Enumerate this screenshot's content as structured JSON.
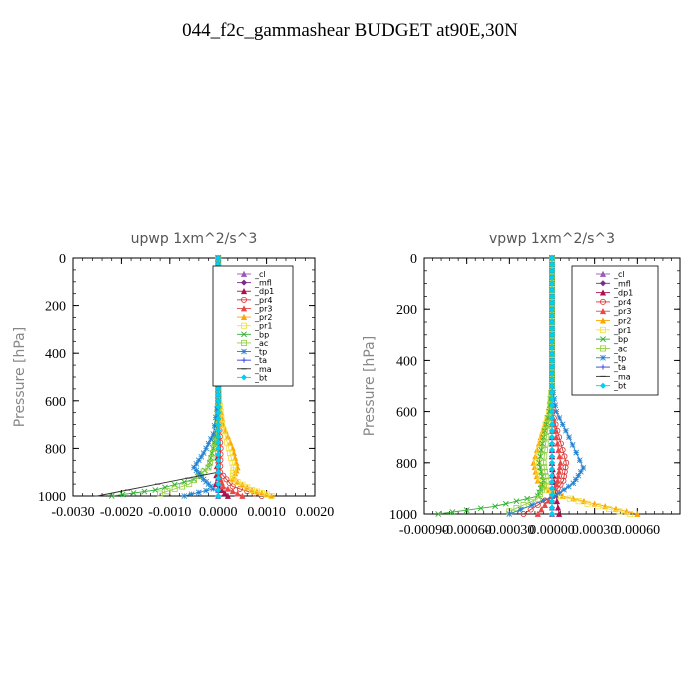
{
  "title": "044_f2c_gammashear  BUDGET at90E,30N",
  "colors": {
    "cl": "#9b59b6",
    "mfl": "#7b2d8b",
    "dp1": "#b0104d",
    "pr4": "#e03030",
    "pr3": "#e84848",
    "pr2": "#ffa500",
    "pr1": "#f0e040",
    "bp": "#30b030",
    "ac": "#90d040",
    "tp": "#2080d0",
    "ta": "#3040e0",
    "ma": "#303030",
    "bt": "#00d0f0"
  },
  "chart_data": [
    {
      "type": "line",
      "title": "upwp   1xm^2/s^3",
      "ylabel": "Pressure [hPa]",
      "xlim": [
        -0.003,
        0.002
      ],
      "ylim": [
        1000,
        0
      ],
      "xticks": [
        "-0.0030",
        "-0.0020",
        "-0.0010",
        "0.0000",
        "0.0010",
        "0.0020"
      ],
      "xtick_values": [
        -0.003,
        -0.002,
        -0.001,
        0.0,
        0.001,
        0.002
      ],
      "yticks": [
        "0",
        "200",
        "400",
        "600",
        "800",
        "1000"
      ],
      "ytick_values": [
        0,
        200,
        400,
        600,
        800,
        1000
      ],
      "legend": "top-right",
      "series": [
        {
          "name": "_cl",
          "color_key": "cl",
          "x": [
            0,
            0,
            0,
            0,
            0,
            0,
            0,
            0,
            0,
            0,
            0
          ],
          "y": [
            0,
            100,
            200,
            300,
            400,
            500,
            600,
            700,
            800,
            900,
            1000
          ]
        },
        {
          "name": "_mfl",
          "color_key": "mfl",
          "x": [
            0,
            0,
            0,
            0,
            0,
            0,
            0,
            0,
            0,
            0,
            0
          ],
          "y": [
            0,
            100,
            200,
            300,
            400,
            500,
            600,
            700,
            800,
            900,
            1000
          ]
        },
        {
          "name": "_dp1",
          "color_key": "dp1",
          "x": [
            0,
            0,
            0,
            0,
            0,
            0,
            0,
            0,
            0,
            -5e-05,
            0.0002
          ],
          "y": [
            0,
            100,
            200,
            300,
            400,
            500,
            600,
            700,
            800,
            950,
            1000
          ]
        },
        {
          "name": "_pr4",
          "color_key": "pr4",
          "x": [
            0,
            0,
            0,
            0,
            0,
            0,
            0,
            2e-05,
            5e-05,
            4e-05,
            0.0003,
            0.0009
          ],
          "y": [
            0,
            100,
            200,
            300,
            400,
            500,
            600,
            700,
            800,
            900,
            960,
            1000
          ]
        },
        {
          "name": "_pr3",
          "color_key": "pr3",
          "x": [
            0,
            0,
            0,
            0,
            0,
            0,
            0,
            0,
            0,
            0,
            0.0001,
            0.0005
          ],
          "y": [
            0,
            100,
            200,
            300,
            400,
            500,
            600,
            700,
            800,
            900,
            960,
            1000
          ]
        },
        {
          "name": "_pr2",
          "color_key": "pr2",
          "x": [
            0,
            0,
            0,
            0,
            0,
            0,
            3e-05,
            0.0001,
            0.0003,
            0.0004,
            0.0003,
            0.0007,
            0.0011
          ],
          "y": [
            0,
            100,
            200,
            300,
            400,
            500,
            600,
            700,
            800,
            880,
            930,
            975,
            1000
          ]
        },
        {
          "name": "_pr1",
          "color_key": "pr1",
          "x": [
            0,
            0,
            0,
            0,
            0,
            0,
            2e-05,
            8e-05,
            0.00022,
            0.00032,
            0.0003,
            0.0007,
            0.0011
          ],
          "y": [
            0,
            100,
            200,
            300,
            400,
            500,
            600,
            700,
            800,
            880,
            930,
            975,
            1000
          ]
        },
        {
          "name": "_bp",
          "color_key": "bp",
          "x": [
            0,
            0,
            0,
            0,
            0,
            0,
            0,
            -3e-05,
            -0.0001,
            -0.0002,
            -0.0005,
            -0.0013,
            -0.0022
          ],
          "y": [
            0,
            100,
            200,
            300,
            400,
            500,
            600,
            700,
            800,
            880,
            930,
            975,
            1000
          ]
        },
        {
          "name": "_ac",
          "color_key": "ac",
          "x": [
            0,
            0,
            0,
            0,
            0,
            0,
            0,
            -2e-05,
            -8e-05,
            -0.0002,
            -0.0006,
            -0.0012
          ],
          "y": [
            0,
            100,
            200,
            300,
            400,
            500,
            600,
            700,
            800,
            880,
            950,
            990
          ]
        },
        {
          "name": "_tp",
          "color_key": "tp",
          "x": [
            0,
            0,
            0,
            0,
            0,
            0,
            0,
            -0.0001,
            -0.0003,
            -0.0005,
            -0.0003,
            -0.0001,
            -0.0007
          ],
          "y": [
            0,
            100,
            200,
            300,
            400,
            500,
            600,
            740,
            820,
            880,
            930,
            970,
            1000
          ]
        },
        {
          "name": "_ta",
          "color_key": "ta",
          "x": [
            0,
            0,
            0,
            0,
            0,
            0,
            0,
            0,
            0,
            0,
            0
          ],
          "y": [
            0,
            100,
            200,
            300,
            400,
            500,
            600,
            700,
            800,
            900,
            1000
          ]
        },
        {
          "name": "_ma",
          "color_key": "ma",
          "x": [
            0,
            0,
            0,
            0,
            0,
            0,
            0,
            0,
            0,
            0,
            -0.0025
          ],
          "y": [
            0,
            100,
            200,
            300,
            400,
            500,
            600,
            700,
            800,
            900,
            1000
          ]
        },
        {
          "name": "_bt",
          "color_key": "bt",
          "x": [
            0,
            0,
            0,
            0,
            0,
            0,
            0,
            0,
            0,
            0,
            0
          ],
          "y": [
            0,
            100,
            200,
            300,
            400,
            500,
            600,
            700,
            800,
            900,
            1000
          ]
        }
      ]
    },
    {
      "type": "line",
      "title": "vpwp   1xm^2/s^3",
      "ylabel": "Pressure [hPa]",
      "xlim": [
        -0.0009,
        0.0009
      ],
      "ylim": [
        1000,
        0
      ],
      "xticks": [
        "-0.00090",
        "-0.00060",
        "-0.00030",
        "0.00000",
        "0.00030",
        "0.00060"
      ],
      "xtick_values": [
        -0.0009,
        -0.0006,
        -0.0003,
        0.0,
        0.0003,
        0.0006
      ],
      "yticks": [
        "0",
        "200",
        "400",
        "600",
        "800",
        "1000"
      ],
      "ytick_values": [
        0,
        200,
        400,
        600,
        800,
        1000
      ],
      "legend": "top-right",
      "series": [
        {
          "name": "_cl",
          "color_key": "cl",
          "x": [
            0,
            0,
            0,
            0,
            0,
            0,
            0,
            0,
            0,
            0,
            0
          ],
          "y": [
            0,
            100,
            200,
            300,
            400,
            500,
            600,
            700,
            800,
            900,
            1000
          ]
        },
        {
          "name": "_mfl",
          "color_key": "mfl",
          "x": [
            0,
            0,
            0,
            0,
            0,
            0,
            0,
            0,
            0,
            0,
            0
          ],
          "y": [
            0,
            100,
            200,
            300,
            400,
            500,
            600,
            700,
            800,
            900,
            1000
          ]
        },
        {
          "name": "_dp1",
          "color_key": "dp1",
          "x": [
            0,
            0,
            0,
            0,
            0,
            0,
            0,
            0,
            0,
            2e-05,
            5e-05
          ],
          "y": [
            0,
            100,
            200,
            300,
            400,
            500,
            600,
            700,
            800,
            900,
            1000
          ]
        },
        {
          "name": "_pr4",
          "color_key": "pr4",
          "x": [
            0,
            0,
            0,
            0,
            0,
            0,
            0,
            5e-05,
            0.0001,
            8e-05,
            0,
            -0.0002
          ],
          "y": [
            0,
            100,
            200,
            300,
            400,
            500,
            600,
            700,
            800,
            870,
            930,
            1000
          ]
        },
        {
          "name": "_pr3",
          "color_key": "pr3",
          "x": [
            0,
            0,
            0,
            0,
            0,
            0,
            0,
            3e-05,
            6e-05,
            4e-05,
            0,
            -0.0001
          ],
          "y": [
            0,
            100,
            200,
            300,
            400,
            500,
            600,
            700,
            800,
            870,
            930,
            1000
          ]
        },
        {
          "name": "_pr2",
          "color_key": "pr2",
          "x": [
            0,
            0,
            0,
            0,
            0,
            0,
            -2e-05,
            -8e-05,
            -0.00013,
            -0.0001,
            0,
            0.0003,
            0.0006
          ],
          "y": [
            0,
            100,
            200,
            300,
            400,
            500,
            600,
            700,
            800,
            870,
            920,
            960,
            1000
          ]
        },
        {
          "name": "_pr1",
          "color_key": "pr1",
          "x": [
            0,
            0,
            0,
            0,
            0,
            0,
            -2e-05,
            -7e-05,
            -0.00011,
            -8e-05,
            0,
            0.00025,
            0.00055
          ],
          "y": [
            0,
            100,
            200,
            300,
            400,
            500,
            600,
            700,
            800,
            870,
            920,
            960,
            1000
          ]
        },
        {
          "name": "_bp",
          "color_key": "bp",
          "x": [
            0,
            0,
            0,
            0,
            0,
            0,
            -2e-05,
            -6e-05,
            -9e-05,
            -6e-05,
            -0.0001,
            -0.0004,
            -0.0008
          ],
          "y": [
            0,
            100,
            200,
            300,
            400,
            500,
            600,
            700,
            800,
            870,
            930,
            970,
            1000
          ]
        },
        {
          "name": "_ac",
          "color_key": "ac",
          "x": [
            0,
            0,
            0,
            0,
            0,
            0,
            -1e-05,
            -4e-05,
            -6e-05,
            -4e-05,
            -0.0001,
            -0.0003
          ],
          "y": [
            0,
            100,
            200,
            300,
            400,
            500,
            600,
            700,
            800,
            870,
            940,
            990
          ]
        },
        {
          "name": "_tp",
          "color_key": "tp",
          "x": [
            0,
            0,
            0,
            0,
            0,
            0,
            3e-05,
            0.00012,
            0.00022,
            0.00015,
            2e-05,
            -0.0003
          ],
          "y": [
            0,
            100,
            200,
            300,
            400,
            500,
            600,
            700,
            820,
            880,
            930,
            1000
          ]
        },
        {
          "name": "_ta",
          "color_key": "ta",
          "x": [
            0,
            0,
            0,
            0,
            0,
            0,
            0,
            0,
            0,
            0,
            0
          ],
          "y": [
            0,
            100,
            200,
            300,
            400,
            500,
            600,
            700,
            800,
            900,
            1000
          ]
        },
        {
          "name": "_ma",
          "color_key": "ma",
          "x": [
            0,
            0,
            0,
            0,
            0,
            0,
            0,
            0,
            0,
            0,
            0
          ],
          "y": [
            0,
            100,
            200,
            300,
            400,
            500,
            600,
            700,
            800,
            900,
            1000
          ]
        },
        {
          "name": "_bt",
          "color_key": "bt",
          "x": [
            0,
            0,
            0,
            0,
            0,
            0,
            0,
            0,
            0,
            0,
            0
          ],
          "y": [
            0,
            100,
            200,
            300,
            400,
            500,
            600,
            700,
            800,
            900,
            1000
          ]
        }
      ]
    }
  ]
}
